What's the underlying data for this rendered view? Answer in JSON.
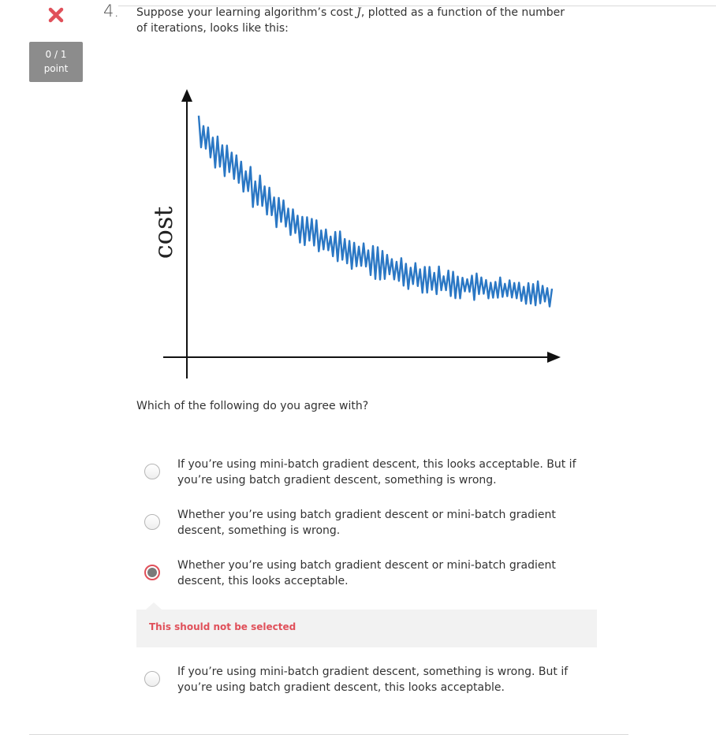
{
  "question": {
    "number": "4.",
    "text_before": "Suppose your learning algorithm’s cost ",
    "math_symbol": "J",
    "text_after": ", plotted as a function of the number of iterations, looks like this:",
    "prompt": "Which of the following do you agree with?"
  },
  "score": {
    "value": "0 / 1",
    "unit": "point",
    "status_icon": "cross-icon",
    "status_color": "#e0505a"
  },
  "chart_data": {
    "type": "line",
    "ylabel": "cost",
    "xlabel": "",
    "title": "",
    "description_trend": "noisy decreasing",
    "series": [
      {
        "color": "#2a77c4",
        "x": [
          0,
          5,
          10,
          15,
          20,
          25,
          30,
          35,
          40,
          45,
          50,
          55,
          60,
          65,
          70,
          75,
          80,
          85,
          90,
          95,
          100
        ],
        "values": [
          0.95,
          0.86,
          0.78,
          0.7,
          0.63,
          0.57,
          0.52,
          0.47,
          0.43,
          0.4,
          0.37,
          0.34,
          0.32,
          0.3,
          0.28,
          0.27,
          0.26,
          0.25,
          0.24,
          0.24,
          0.23
        ]
      }
    ]
  },
  "options": [
    {
      "label": "If you’re using mini-batch gradient descent, this looks acceptable. But if you’re using batch gradient descent, something is wrong.",
      "selected": false
    },
    {
      "label": "Whether you’re using batch gradient descent or mini-batch gradient descent, something is wrong.",
      "selected": false
    },
    {
      "label": "Whether you’re using batch gradient descent or mini-batch gradient descent, this looks acceptable.",
      "selected": true
    },
    {
      "label": "If you’re using mini-batch gradient descent, something is wrong. But if you’re using batch gradient descent, this looks acceptable.",
      "selected": false
    }
  ],
  "feedback": {
    "text": "This should not be selected",
    "color": "#e0505a"
  }
}
